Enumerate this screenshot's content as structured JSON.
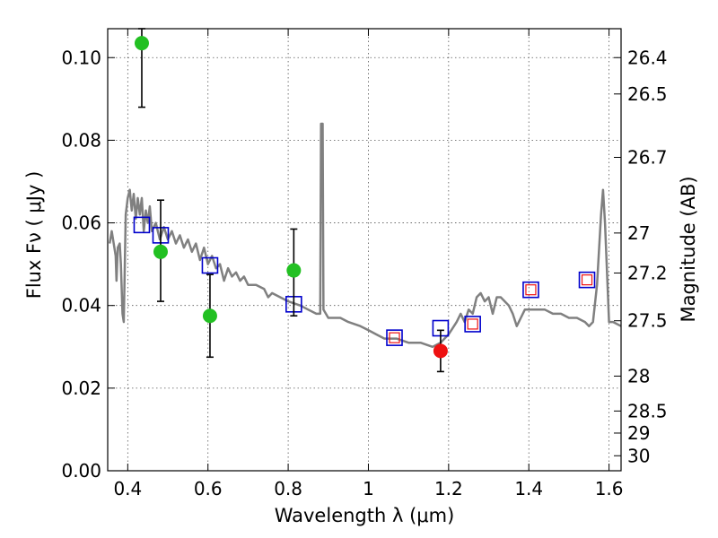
{
  "chart_data": {
    "type": "scatter",
    "xlabel": "Wavelength  λ (μm)",
    "ylabel": "Flux  Fν  ( μJy )",
    "y2label": "Magnitude (AB)",
    "xlim": [
      0.35,
      1.63
    ],
    "ylim": [
      0.0,
      0.107
    ],
    "grid": true,
    "x_ticks": [
      0.4,
      0.6,
      0.8,
      1.0,
      1.2,
      1.4,
      1.6
    ],
    "x_tick_labels": [
      "0.4",
      "0.6",
      "0.8",
      "1",
      "1.2",
      "1.4",
      "1.6"
    ],
    "y_ticks": [
      0.0,
      0.02,
      0.04,
      0.06,
      0.08,
      0.1
    ],
    "y_tick_labels": [
      "0.00",
      "0.02",
      "0.04",
      "0.06",
      "0.08",
      "0.10"
    ],
    "y2_tick_labels": [
      "26.4",
      "26.5",
      "26.7",
      "27",
      "27.2",
      "27.5",
      "28",
      "28.5",
      "29",
      "30"
    ],
    "colors": {
      "spectrum": "#808080",
      "green": "#22c022",
      "red": "#ee1111",
      "model_square": "#0000cc",
      "model_inner": "#ee1111",
      "errorbar": "#000000"
    },
    "series": [
      {
        "name": "template spectrum",
        "style": "line",
        "points": [
          [
            0.355,
            0.055
          ],
          [
            0.36,
            0.058
          ],
          [
            0.365,
            0.055
          ],
          [
            0.37,
            0.052
          ],
          [
            0.372,
            0.046
          ],
          [
            0.375,
            0.054
          ],
          [
            0.38,
            0.055
          ],
          [
            0.383,
            0.05
          ],
          [
            0.387,
            0.038
          ],
          [
            0.39,
            0.036
          ],
          [
            0.395,
            0.062
          ],
          [
            0.4,
            0.066
          ],
          [
            0.405,
            0.068
          ],
          [
            0.41,
            0.063
          ],
          [
            0.415,
            0.067
          ],
          [
            0.42,
            0.061
          ],
          [
            0.425,
            0.066
          ],
          [
            0.43,
            0.062
          ],
          [
            0.435,
            0.066
          ],
          [
            0.44,
            0.058
          ],
          [
            0.445,
            0.063
          ],
          [
            0.45,
            0.06
          ],
          [
            0.455,
            0.064
          ],
          [
            0.46,
            0.058
          ],
          [
            0.47,
            0.06
          ],
          [
            0.48,
            0.056
          ],
          [
            0.49,
            0.059
          ],
          [
            0.5,
            0.056
          ],
          [
            0.51,
            0.058
          ],
          [
            0.52,
            0.055
          ],
          [
            0.53,
            0.057
          ],
          [
            0.54,
            0.054
          ],
          [
            0.55,
            0.056
          ],
          [
            0.56,
            0.053
          ],
          [
            0.57,
            0.055
          ],
          [
            0.58,
            0.051
          ],
          [
            0.59,
            0.054
          ],
          [
            0.6,
            0.05
          ],
          [
            0.61,
            0.052
          ],
          [
            0.62,
            0.049
          ],
          [
            0.63,
            0.05
          ],
          [
            0.64,
            0.046
          ],
          [
            0.65,
            0.049
          ],
          [
            0.66,
            0.047
          ],
          [
            0.67,
            0.048
          ],
          [
            0.68,
            0.046
          ],
          [
            0.69,
            0.047
          ],
          [
            0.7,
            0.045
          ],
          [
            0.72,
            0.045
          ],
          [
            0.74,
            0.044
          ],
          [
            0.75,
            0.042
          ],
          [
            0.76,
            0.043
          ],
          [
            0.78,
            0.042
          ],
          [
            0.8,
            0.041
          ],
          [
            0.83,
            0.04
          ],
          [
            0.85,
            0.039
          ],
          [
            0.87,
            0.038
          ],
          [
            0.88,
            0.038
          ],
          [
            0.882,
            0.084
          ],
          [
            0.886,
            0.084
          ],
          [
            0.888,
            0.039
          ],
          [
            0.9,
            0.037
          ],
          [
            0.93,
            0.037
          ],
          [
            0.95,
            0.036
          ],
          [
            0.98,
            0.035
          ],
          [
            1.0,
            0.034
          ],
          [
            1.02,
            0.033
          ],
          [
            1.04,
            0.032
          ],
          [
            1.07,
            0.032
          ],
          [
            1.1,
            0.031
          ],
          [
            1.13,
            0.031
          ],
          [
            1.16,
            0.03
          ],
          [
            1.18,
            0.031
          ],
          [
            1.2,
            0.033
          ],
          [
            1.22,
            0.036
          ],
          [
            1.23,
            0.038
          ],
          [
            1.24,
            0.036
          ],
          [
            1.25,
            0.039
          ],
          [
            1.26,
            0.038
          ],
          [
            1.27,
            0.042
          ],
          [
            1.28,
            0.043
          ],
          [
            1.29,
            0.041
          ],
          [
            1.3,
            0.042
          ],
          [
            1.31,
            0.038
          ],
          [
            1.32,
            0.042
          ],
          [
            1.33,
            0.042
          ],
          [
            1.34,
            0.041
          ],
          [
            1.35,
            0.04
          ],
          [
            1.36,
            0.038
          ],
          [
            1.37,
            0.035
          ],
          [
            1.38,
            0.037
          ],
          [
            1.39,
            0.039
          ],
          [
            1.4,
            0.039
          ],
          [
            1.42,
            0.039
          ],
          [
            1.44,
            0.039
          ],
          [
            1.46,
            0.038
          ],
          [
            1.48,
            0.038
          ],
          [
            1.5,
            0.037
          ],
          [
            1.52,
            0.037
          ],
          [
            1.54,
            0.036
          ],
          [
            1.55,
            0.035
          ],
          [
            1.56,
            0.036
          ],
          [
            1.57,
            0.045
          ],
          [
            1.58,
            0.062
          ],
          [
            1.585,
            0.068
          ],
          [
            1.59,
            0.06
          ],
          [
            1.6,
            0.036
          ],
          [
            1.61,
            0.036
          ],
          [
            1.63,
            0.035
          ]
        ]
      },
      {
        "name": "observed (green)",
        "style": "circle",
        "points": [
          {
            "x": 0.435,
            "y": 0.1035,
            "yerr_low": 0.088,
            "yerr_high": 0.107
          },
          {
            "x": 0.482,
            "y": 0.053,
            "yerr_low": 0.041,
            "yerr_high": 0.0655
          },
          {
            "x": 0.605,
            "y": 0.0375,
            "yerr_low": 0.0275,
            "yerr_high": 0.0475
          },
          {
            "x": 0.814,
            "y": 0.0485,
            "yerr_low": 0.0375,
            "yerr_high": 0.0585
          }
        ]
      },
      {
        "name": "observed (red)",
        "style": "circle",
        "points": [
          {
            "x": 1.18,
            "y": 0.029,
            "yerr_low": 0.024,
            "yerr_high": 0.034
          }
        ]
      },
      {
        "name": "model photometry (blue squares)",
        "style": "square",
        "points": [
          {
            "x": 0.435,
            "y": 0.0595
          },
          {
            "x": 0.482,
            "y": 0.057
          },
          {
            "x": 0.605,
            "y": 0.0497
          },
          {
            "x": 0.814,
            "y": 0.0403
          },
          {
            "x": 1.065,
            "y": 0.0322
          },
          {
            "x": 1.18,
            "y": 0.0345
          },
          {
            "x": 1.26,
            "y": 0.0355
          },
          {
            "x": 1.405,
            "y": 0.0438
          },
          {
            "x": 1.545,
            "y": 0.0462
          }
        ]
      },
      {
        "name": "model photometry (red inner squares)",
        "style": "square_small",
        "points": [
          {
            "x": 1.065,
            "y": 0.0322
          },
          {
            "x": 1.26,
            "y": 0.0355
          },
          {
            "x": 1.405,
            "y": 0.0438
          },
          {
            "x": 1.545,
            "y": 0.0462
          }
        ]
      }
    ]
  }
}
